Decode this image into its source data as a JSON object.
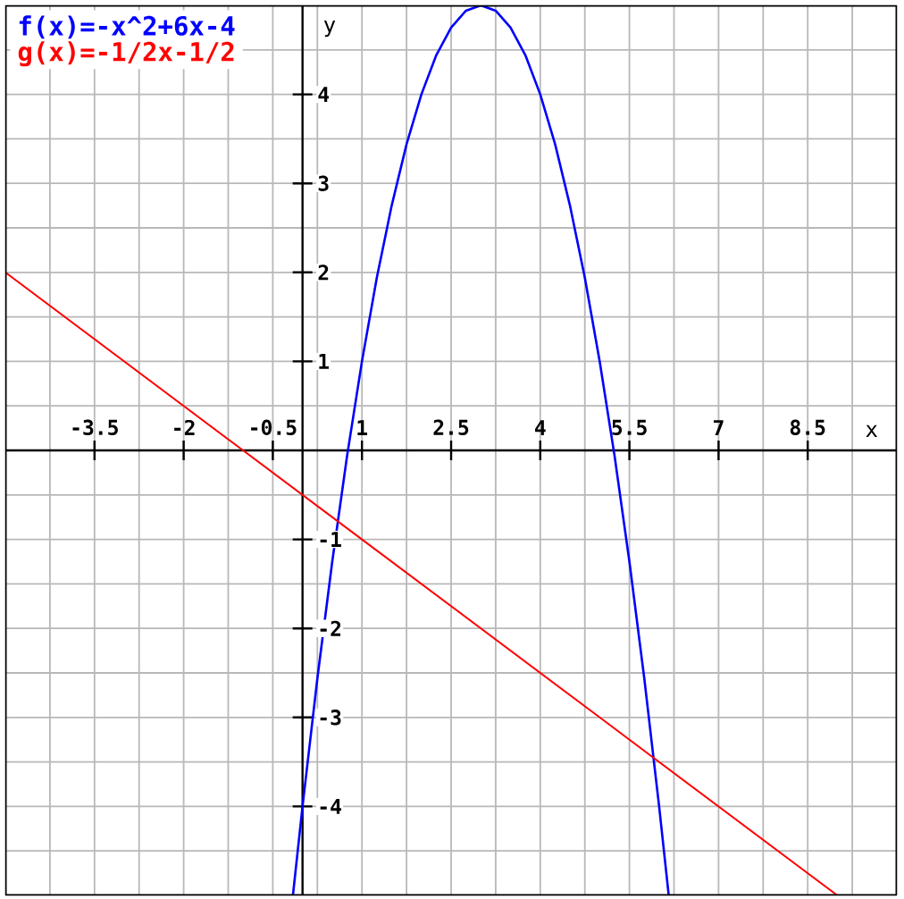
{
  "chart_data": {
    "type": "line",
    "xlabel": "x",
    "ylabel": "y",
    "series": [
      {
        "name": "f(x)=-x^2+6x-4",
        "color": "#0000ff",
        "x": [
          -0.16,
          0,
          0.25,
          0.5,
          0.75,
          1,
          1.25,
          1.5,
          1.75,
          2,
          2.25,
          2.5,
          2.75,
          3,
          3.25,
          3.5,
          3.75,
          4,
          4.25,
          4.5,
          4.75,
          5,
          5.25,
          5.5,
          5.75,
          6,
          6.16
        ],
        "values": [
          -4.99,
          -4,
          -2.56,
          -1.25,
          -0.06,
          1,
          1.94,
          2.75,
          3.44,
          4,
          4.44,
          4.75,
          4.94,
          5,
          4.94,
          4.75,
          4.44,
          4,
          3.44,
          2.75,
          1.94,
          1,
          -0.06,
          -1.25,
          -2.56,
          -4,
          -4.99
        ]
      },
      {
        "name": "g(x)=-1/2x-1/2",
        "color": "#ff0000",
        "x": [
          -5,
          -1,
          1,
          5,
          9
        ],
        "values": [
          2,
          0,
          -1,
          -3,
          -5
        ]
      }
    ],
    "xlim": [
      -5,
      10
    ],
    "ylim": [
      -5,
      5
    ],
    "xticks": [
      -3.5,
      -2,
      -0.5,
      1,
      2.5,
      4,
      5.5,
      7,
      8.5
    ],
    "yticks": [
      -4,
      -3,
      -2,
      -1,
      1,
      2,
      3,
      4
    ],
    "grid": true,
    "legend": "top left"
  }
}
